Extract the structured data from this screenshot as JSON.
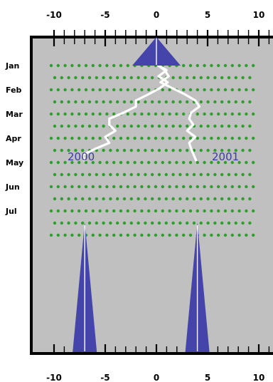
{
  "chart_data": {
    "type": "line",
    "title": "",
    "xlabel": "",
    "ylabel": "",
    "x_ticks": [
      -10,
      -5,
      0,
      5,
      10
    ],
    "xlim": [
      -10.3,
      11
    ],
    "months": [
      "Jan",
      "Feb",
      "Mar",
      "Apr",
      "May",
      "Jun",
      "Jul"
    ],
    "year_labels": [
      "2000",
      "2001"
    ],
    "grid": "dotted",
    "colors": {
      "panel": "#c0c0c0",
      "frame": "#000000",
      "dots": "#2e9e2e",
      "line": "#ffffff",
      "markers": "#4444aa",
      "year_text": "#3a3aa8"
    },
    "series": [
      {
        "x": [
          0,
          1,
          0.2,
          1.1,
          0.3,
          -0.8,
          -2.0,
          -2.0,
          -3.2,
          -4.6,
          -4.6,
          -4.0,
          -5.0,
          -4.6,
          -6.0,
          -7.2,
          -7.0
        ],
        "y": [
          0,
          0.5,
          1,
          1.5,
          2,
          2.5,
          3,
          3.5,
          4,
          4.5,
          5,
          5.5,
          6,
          6.5,
          7,
          7.5,
          8
        ]
      },
      {
        "x": [
          0,
          0.8,
          1.2,
          0.4,
          1.6,
          2.8,
          3.8,
          4.2,
          3.4,
          3.2,
          3.6,
          3.0,
          3.8,
          3.2,
          3.4,
          3.9
        ],
        "y": [
          0,
          0.5,
          1,
          1.5,
          2,
          2.5,
          3,
          3.5,
          4,
          4.5,
          5,
          5.5,
          6,
          6.5,
          7,
          8
        ]
      }
    ],
    "markers": {
      "top": {
        "x": 0
      },
      "bottom": [
        {
          "x": -7
        },
        {
          "x": 4
        }
      ]
    }
  }
}
